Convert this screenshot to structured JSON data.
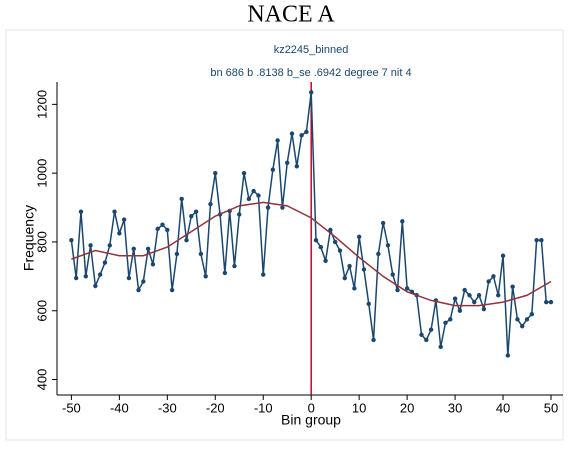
{
  "chart_data": {
    "type": "line",
    "title": "NACE A",
    "subtitle": "kz2245_binned",
    "note": "bn 686 b .8138 b_se .6942 degree 7 nit 4",
    "x_label": "Bin group",
    "y_label": "Frequency",
    "xlim": [
      -53,
      52.5
    ],
    "ylim": [
      355,
      1265
    ],
    "xticks": [
      -50,
      -40,
      -30,
      -20,
      -10,
      0,
      10,
      20,
      30,
      40,
      50
    ],
    "yticks": [
      400,
      600,
      800,
      1000,
      1200
    ],
    "vline": 0,
    "vline_color": "#c10534",
    "x": [
      -50,
      -49,
      -48,
      -47,
      -46,
      -45,
      -44,
      -43,
      -42,
      -41,
      -40,
      -39,
      -38,
      -37,
      -36,
      -35,
      -34,
      -33,
      -32,
      -31,
      -30,
      -29,
      -28,
      -27,
      -26,
      -25,
      -24,
      -23,
      -22,
      -21,
      -20,
      -19,
      -18,
      -17,
      -16,
      -15,
      -14,
      -13,
      -12,
      -11,
      -10,
      -9,
      -8,
      -7,
      -6,
      -5,
      -4,
      -3,
      -2,
      -1,
      0,
      1,
      2,
      3,
      4,
      5,
      6,
      7,
      8,
      9,
      10,
      11,
      12,
      13,
      14,
      15,
      16,
      17,
      18,
      19,
      20,
      21,
      22,
      23,
      24,
      25,
      26,
      27,
      28,
      29,
      30,
      31,
      32,
      33,
      34,
      35,
      36,
      37,
      38,
      39,
      40,
      41,
      42,
      43,
      44,
      45,
      46,
      47,
      48,
      49,
      50
    ],
    "series": [
      {
        "color": "#1a476f",
        "markers": true,
        "values": [
          805,
          695,
          888,
          700,
          790,
          672,
          705,
          740,
          790,
          888,
          825,
          865,
          695,
          780,
          660,
          685,
          780,
          735,
          838,
          850,
          835,
          660,
          765,
          925,
          805,
          875,
          888,
          765,
          700,
          910,
          1000,
          880,
          710,
          890,
          730,
          880,
          1000,
          925,
          948,
          935,
          705,
          900,
          1010,
          1095,
          900,
          1030,
          1115,
          1020,
          1110,
          1120,
          1235,
          805,
          785,
          745,
          835,
          800,
          775,
          695,
          730,
          665,
          815,
          720,
          620,
          515,
          765,
          855,
          790,
          705,
          660,
          860,
          665,
          655,
          645,
          530,
          515,
          545,
          630,
          495,
          565,
          575,
          635,
          600,
          660,
          645,
          625,
          645,
          605,
          685,
          700,
          645,
          760,
          470,
          670,
          575,
          555,
          575,
          590,
          805,
          805,
          625,
          625
        ]
      },
      {
        "color": "#90353b",
        "markers": false,
        "x": [
          -50,
          -45,
          -40,
          -35,
          -30,
          -25,
          -20,
          -15,
          -10,
          -5,
          0,
          5,
          10,
          15,
          20,
          25,
          30,
          35,
          40,
          45,
          50
        ],
        "values": [
          750,
          775,
          760,
          760,
          785,
          830,
          875,
          905,
          915,
          905,
          870,
          815,
          755,
          700,
          655,
          630,
          615,
          615,
          625,
          645,
          685
        ]
      }
    ]
  }
}
